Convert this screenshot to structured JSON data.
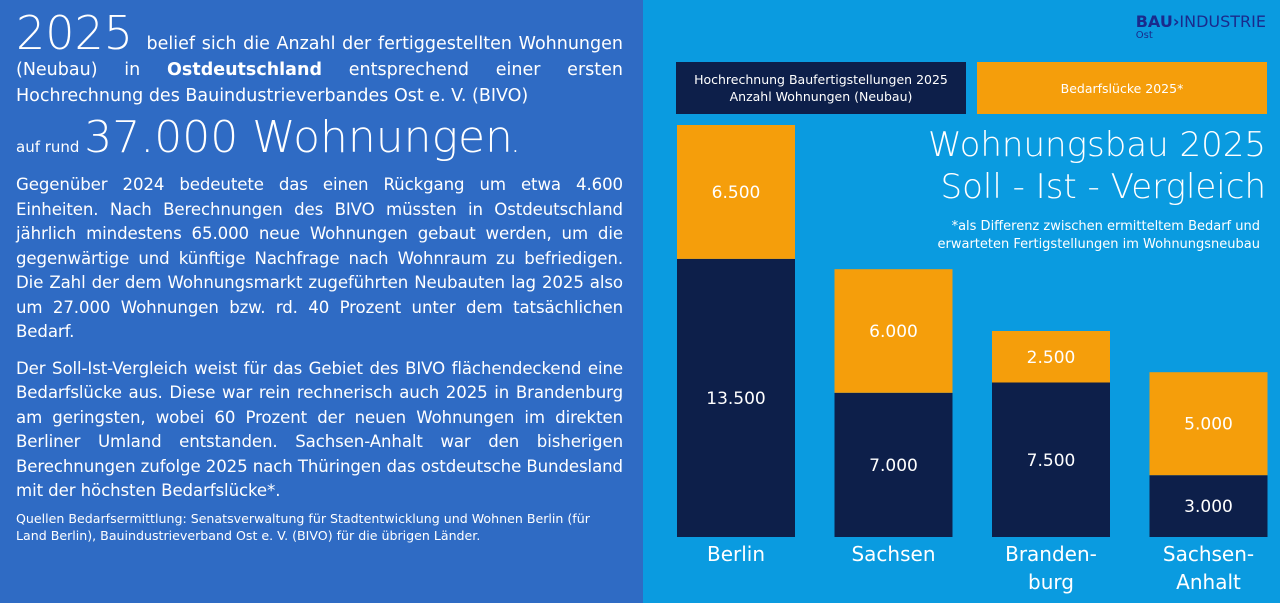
{
  "left": {
    "year": "2025",
    "intro_1": "belief sich die Anzahl der fertiggestellten Wohnungen (Neubau) in",
    "intro_bold": "Ostdeutschland",
    "intro_2": "entsprechend einer ersten Hochrechnung des Bauindustrieverbandes Ost e. V. (BIVO)",
    "auf_rund": "auf rund",
    "headline": "37.000 Wohnungen",
    "period": ".",
    "para1": "Gegenüber 2024 bedeutete das einen Rückgang um etwa 4.600 Einheiten. Nach Berechnungen des BIVO müssten in Ostdeutschland jährlich mindestens 65.000 neue Wohnungen gebaut werden, um die gegenwärtige und künftige Nachfrage nach Wohnraum zu befriedigen. Die Zahl der dem Wohnungsmarkt zugeführten Neubauten lag 2025 also um 27.000 Wohnungen bzw. rd. 40 Prozent unter dem tatsächlichen Bedarf.",
    "para2": "Der Soll-Ist-Vergleich weist für das Gebiet des BIVO flächendeckend eine Bedarfslücke aus. Diese war rein rechnerisch auch 2025 in Brandenburg am geringsten, wobei 60 Prozent der neuen Wohnungen im direkten Berliner Umland entstanden. Sachsen-Anhalt war den bisherigen Berechnungen zufolge 2025 nach Thüringen das ostdeutsche Bundesland mit der höchsten Bedarfslücke*.",
    "source": "Quellen Bedarfsermittlung: Senatsverwaltung für Stadtentwicklung und Wohnen Berlin (für Land Berlin), Bauindustrieverband Ost e. V. (BIVO) für die übrigen Länder."
  },
  "logo": {
    "bau": "BAU",
    "arrow": "›",
    "industrie": "INDUSTRIE",
    "ost": "Ost"
  },
  "colors": {
    "left_bg": "#2f6bc4",
    "right_bg": "#0a9be0",
    "navy": "#0d1f4a",
    "orange": "#f59e0b"
  },
  "chart_data": {
    "type": "bar",
    "stacked": true,
    "title": "Wohnungsbau 2025",
    "subtitle": "Soll - Ist - Vergleich",
    "note": "*als Differenz zwischen ermitteltem Bedarf und erwarteten Fertigstellungen im Wohnungsneubau",
    "categories": [
      "Berlin",
      "Sachsen",
      "Branden-burg",
      "Sachsen-Anhalt"
    ],
    "series": [
      {
        "name": "Hochrechnung Baufertigstellungen 2025 Anzahl Wohnungen (Neubau)",
        "color": "#0d1f4a",
        "values": [
          13500,
          7000,
          7500,
          3000
        ],
        "labels": [
          "13.500",
          "7.000",
          "7.500",
          "3.000"
        ]
      },
      {
        "name": "Bedarfslücke 2025*",
        "color": "#f59e0b",
        "values": [
          6500,
          6000,
          2500,
          5000
        ],
        "labels": [
          "6.500",
          "6.000",
          "2.500",
          "5.000"
        ]
      }
    ],
    "legend": "top",
    "ylim": [
      0,
      20000
    ]
  }
}
